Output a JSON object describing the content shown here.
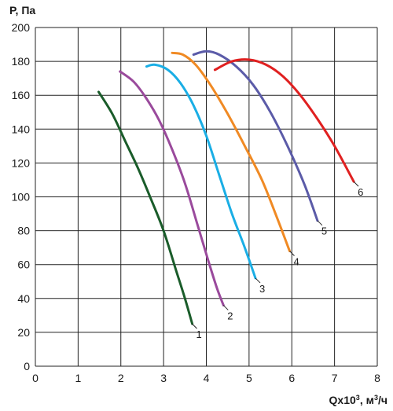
{
  "chart_data": {
    "type": "line",
    "ylabel": "P, Па",
    "xlabel": "Qx10³, м³/ч",
    "xlim": [
      0,
      8
    ],
    "ylim": [
      0,
      200
    ],
    "x_ticks": [
      "0",
      "1",
      "2",
      "3",
      "4",
      "5",
      "6",
      "7",
      "8"
    ],
    "y_ticks": [
      "0",
      "20",
      "40",
      "60",
      "80",
      "100",
      "120",
      "140",
      "160",
      "180",
      "200"
    ],
    "grid": true,
    "series": [
      {
        "name": "1",
        "color": "#1a5c2a",
        "points": [
          [
            1.48,
            162
          ],
          [
            1.8,
            149
          ],
          [
            2.1,
            133
          ],
          [
            2.4,
            117
          ],
          [
            2.7,
            99
          ],
          [
            3.0,
            80
          ],
          [
            3.3,
            56
          ],
          [
            3.5,
            40
          ],
          [
            3.67,
            25
          ]
        ]
      },
      {
        "name": "2",
        "color": "#9a4a9c",
        "points": [
          [
            1.98,
            174
          ],
          [
            2.3,
            168
          ],
          [
            2.6,
            158
          ],
          [
            2.9,
            145
          ],
          [
            3.2,
            128
          ],
          [
            3.5,
            108
          ],
          [
            3.8,
            83
          ],
          [
            4.05,
            62
          ],
          [
            4.25,
            46
          ],
          [
            4.4,
            36
          ]
        ]
      },
      {
        "name": "3",
        "color": "#1aaee5",
        "points": [
          [
            2.6,
            177
          ],
          [
            2.8,
            178
          ],
          [
            3.1,
            175
          ],
          [
            3.4,
            167
          ],
          [
            3.7,
            154
          ],
          [
            4.0,
            136
          ],
          [
            4.3,
            113
          ],
          [
            4.6,
            90
          ],
          [
            4.9,
            70
          ],
          [
            5.15,
            52
          ]
        ]
      },
      {
        "name": "4",
        "color": "#f08a24",
        "points": [
          [
            3.2,
            185
          ],
          [
            3.45,
            184
          ],
          [
            3.75,
            178
          ],
          [
            4.1,
            166
          ],
          [
            4.5,
            149
          ],
          [
            4.9,
            130
          ],
          [
            5.3,
            110
          ],
          [
            5.65,
            88
          ],
          [
            5.95,
            68
          ]
        ]
      },
      {
        "name": "5",
        "color": "#5b5ba8",
        "points": [
          [
            3.7,
            184
          ],
          [
            4.0,
            186
          ],
          [
            4.3,
            184
          ],
          [
            4.7,
            177
          ],
          [
            5.1,
            166
          ],
          [
            5.5,
            150
          ],
          [
            5.9,
            130
          ],
          [
            6.3,
            107
          ],
          [
            6.6,
            86
          ]
        ]
      },
      {
        "name": "6",
        "color": "#e02020",
        "points": [
          [
            4.2,
            175
          ],
          [
            4.6,
            180
          ],
          [
            5.0,
            181
          ],
          [
            5.4,
            178
          ],
          [
            5.8,
            171
          ],
          [
            6.2,
            160
          ],
          [
            6.6,
            146
          ],
          [
            7.0,
            130
          ],
          [
            7.45,
            109
          ]
        ]
      }
    ],
    "curve_labels": [
      "1",
      "2",
      "3",
      "4",
      "5",
      "6"
    ]
  }
}
